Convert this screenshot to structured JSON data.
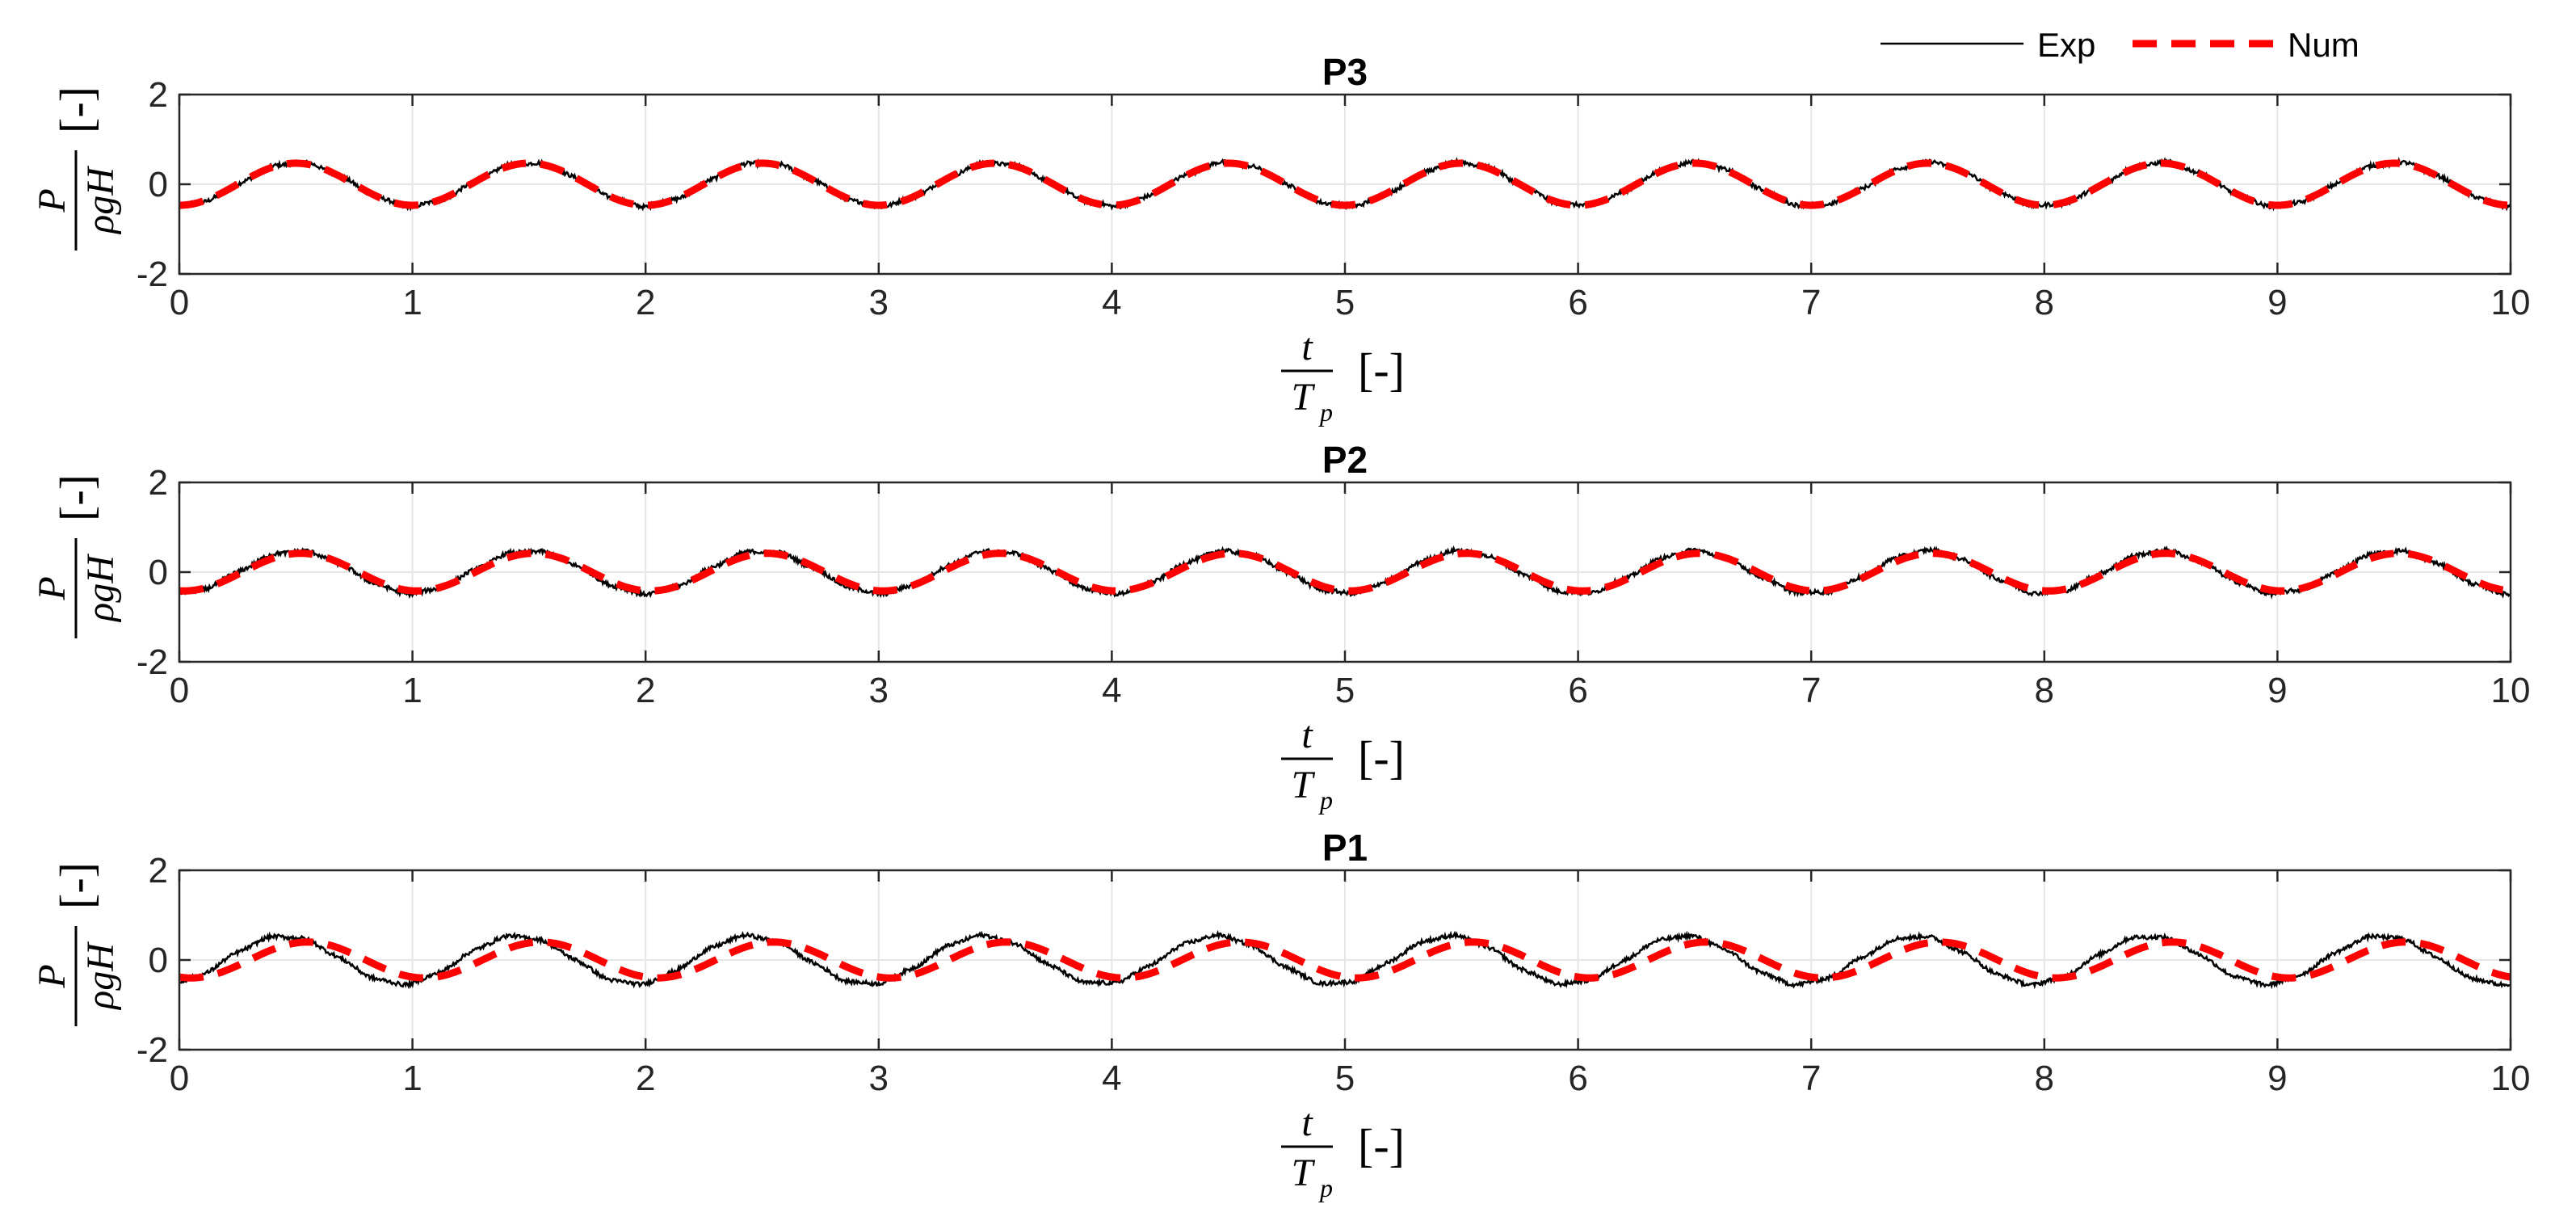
{
  "legend": {
    "position": "top-right",
    "entries": [
      {
        "label": "Exp",
        "color": "#000000",
        "style": "solid"
      },
      {
        "label": "Num",
        "color": "#ff0000",
        "style": "dashed"
      }
    ]
  },
  "colors": {
    "exp": "#000000",
    "num": "#ff0000",
    "grid": "#e6e6e6",
    "axis": "#262626"
  },
  "chart_data": [
    {
      "type": "line",
      "title": "P3",
      "xlabel": {
        "num": "t",
        "den": "T",
        "den_sub": "p",
        "unit": "[-]"
      },
      "ylabel": {
        "num": "P",
        "den": "ρgH",
        "unit": "[-]"
      },
      "xlim": [
        0,
        10
      ],
      "ylim": [
        -2,
        2
      ],
      "xticks": [
        0,
        1,
        2,
        3,
        4,
        5,
        6,
        7,
        8,
        9,
        10
      ],
      "xtick_labels": [
        "0",
        "1",
        "2",
        "3",
        "4",
        "5",
        "6",
        "7",
        "8",
        "9",
        "10"
      ],
      "yticks": [
        -2,
        0,
        2
      ],
      "ytick_labels": [
        "-2",
        "0",
        "2"
      ],
      "grid": true,
      "series": [
        {
          "name": "Exp",
          "model": "sinusoid",
          "amplitude": 0.48,
          "period": 1.0,
          "peak_at": 0.5,
          "offset": 0.0
        },
        {
          "name": "Num",
          "model": "sinusoid",
          "amplitude": 0.47,
          "period": 1.0,
          "peak_at": 0.5,
          "offset": 0.0
        }
      ]
    },
    {
      "type": "line",
      "title": "P2",
      "xlabel": {
        "num": "t",
        "den": "T",
        "den_sub": "p",
        "unit": "[-]"
      },
      "ylabel": {
        "num": "P",
        "den": "ρgH",
        "unit": "[-]"
      },
      "xlim": [
        0,
        10
      ],
      "ylim": [
        -2,
        2
      ],
      "xticks": [
        0,
        1,
        2,
        3,
        4,
        5,
        6,
        7,
        8,
        9,
        10
      ],
      "xtick_labels": [
        "0",
        "1",
        "2",
        "3",
        "4",
        "5",
        "6",
        "7",
        "8",
        "9",
        "10"
      ],
      "yticks": [
        -2,
        0,
        2
      ],
      "ytick_labels": [
        "-2",
        "0",
        "2"
      ],
      "grid": true,
      "series": [
        {
          "name": "Exp",
          "model": "sinusoid",
          "amplitude": 0.47,
          "period": 1.0,
          "peak_at": 0.5,
          "offset": 0.0
        },
        {
          "name": "Num",
          "model": "sinusoid",
          "amplitude": 0.42,
          "period": 1.0,
          "peak_at": 0.52,
          "offset": 0.0
        }
      ]
    },
    {
      "type": "line",
      "title": "P1",
      "xlabel": {
        "num": "t",
        "den": "T",
        "den_sub": "p",
        "unit": "[-]"
      },
      "ylabel": {
        "num": "P",
        "den": "ρgH",
        "unit": "[-]"
      },
      "xlim": [
        0,
        10
      ],
      "ylim": [
        -2,
        2
      ],
      "xticks": [
        0,
        1,
        2,
        3,
        4,
        5,
        6,
        7,
        8,
        9,
        10
      ],
      "xtick_labels": [
        "0",
        "1",
        "2",
        "3",
        "4",
        "5",
        "6",
        "7",
        "8",
        "9",
        "10"
      ],
      "yticks": [
        -2,
        0,
        2
      ],
      "ytick_labels": [
        "-2",
        "0",
        "2"
      ],
      "grid": true,
      "series": [
        {
          "name": "Exp",
          "model": "sinusoid",
          "amplitude": 0.53,
          "period": 1.0,
          "peak_at": 0.45,
          "offset": 0.0
        },
        {
          "name": "Num",
          "model": "sinusoid",
          "amplitude": 0.4,
          "period": 1.0,
          "peak_at": 0.55,
          "offset": 0.0
        }
      ]
    }
  ]
}
